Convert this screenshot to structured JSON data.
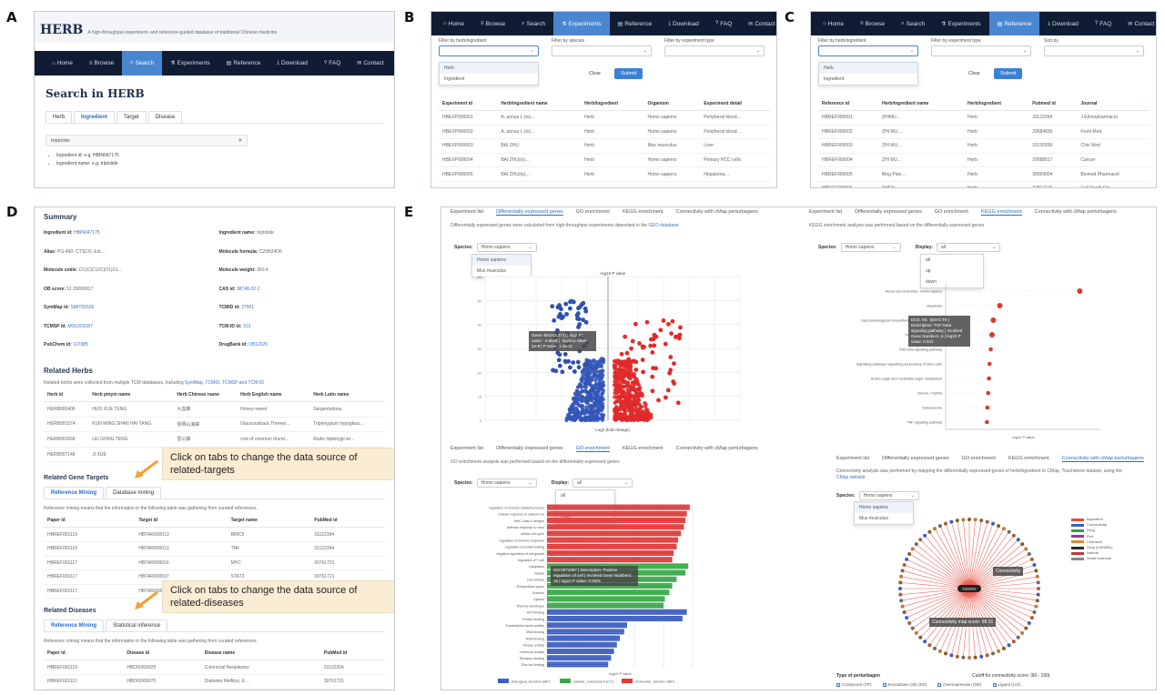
{
  "panel_labels": {
    "a": "A",
    "b": "B",
    "c": "C",
    "d": "D",
    "e": "E"
  },
  "a": {
    "logo": "HERB",
    "tagline": "A high-throughput experiment- and reference-guided database of traditional Chinese medicine",
    "nav": [
      {
        "icon": "⌂",
        "label": "Home"
      },
      {
        "icon": "≡",
        "label": "Browse"
      },
      {
        "icon": "⌕",
        "label": "Search"
      },
      {
        "icon": "⚗",
        "label": "Experiments"
      },
      {
        "icon": "▤",
        "label": "Reference"
      },
      {
        "icon": "⤓",
        "label": "Download"
      },
      {
        "icon": "?",
        "label": "FAQ"
      },
      {
        "icon": "✉",
        "label": "Contact"
      }
    ],
    "heading": "Search in HERB",
    "tabs": [
      "Herb",
      "Ingredient",
      "Target",
      "Disease"
    ],
    "search_value": "triptolide",
    "hints": [
      "Ingredient id: e.g. HBIN047175",
      "Ingredient name: e.g. triptolide"
    ]
  },
  "b": {
    "nav": [
      {
        "icon": "⌂",
        "label": "Home"
      },
      {
        "icon": "≡",
        "label": "Browse"
      },
      {
        "icon": "⌕",
        "label": "Search"
      },
      {
        "icon": "⚗",
        "label": "Experiments"
      },
      {
        "icon": "▤",
        "label": "Reference"
      },
      {
        "icon": "⤓",
        "label": "Download"
      },
      {
        "icon": "?",
        "label": "FAQ"
      },
      {
        "icon": "✉",
        "label": "Contact"
      }
    ],
    "filters": [
      "Filter by herb/ingredient",
      "Filter by species",
      "Filter by experiment type"
    ],
    "dropdown": [
      "Herb",
      "Ingredient"
    ],
    "clear": "Clear",
    "submit": "Submit",
    "headers": [
      "Experiment id",
      "Herb/ingredient name",
      "Herb/ingredient",
      "Organism",
      "Experiment detail"
    ],
    "rows": [
      [
        "HBEXP000001",
        "A. annua L.(ts)…",
        "Herb",
        "Homo sapiens",
        "Peripheral blood…"
      ],
      [
        "HBEXP000002",
        "A. annua L.(ts)…",
        "Herb",
        "Homo sapiens",
        "Peripheral blood…"
      ],
      [
        "HBEXP000003",
        "BAI ZHU",
        "Herb",
        "Mus musculus",
        "Liver"
      ],
      [
        "HBEXP000004",
        "BAI ZHU(ts)…",
        "Herb",
        "Homo sapiens",
        "Primary HCC cells"
      ],
      [
        "HBEXP000005",
        "BAI ZHU(ts)…",
        "Herb",
        "Homo sapiens",
        "Hepatoma…"
      ]
    ]
  },
  "c": {
    "nav": [
      {
        "icon": "⌂",
        "label": "Home"
      },
      {
        "icon": "≡",
        "label": "Browse"
      },
      {
        "icon": "⌕",
        "label": "Search"
      },
      {
        "icon": "⚗",
        "label": "Experiments"
      },
      {
        "icon": "▤",
        "label": "Reference"
      },
      {
        "icon": "⤓",
        "label": "Download"
      },
      {
        "icon": "?",
        "label": "FAQ"
      },
      {
        "icon": "✉",
        "label": "Contact"
      }
    ],
    "filters": [
      "Filter by herb/ingredient",
      "Filter by experiment type",
      "Sort by"
    ],
    "dropdown": [
      "Herb",
      "Ingredient"
    ],
    "clear": "Clear",
    "submit": "Submit",
    "headers": [
      "Reference id",
      "Herb/ingredient name",
      "Herb/ingredient",
      "Pubmed id",
      "Journal"
    ],
    "rows": [
      [
        "HBREF000001",
        "ZHIMU…",
        "Herb",
        "31122394",
        "J Ethnopharmacol"
      ],
      [
        "HBREF000002",
        "ZHI MU…",
        "Herb",
        "29684690",
        "Front Med"
      ],
      [
        "HBREF000003",
        "ZHI MU…",
        "Herb",
        "31150358",
        "Chin Med"
      ],
      [
        "HBREF000004",
        "ZHI MU…",
        "Herb",
        "29088517",
        "Cancer"
      ],
      [
        "HBREF000005",
        "Bing Pian…",
        "Herb",
        "30059004",
        "Biomed Pharmacol"
      ],
      [
        "HBREF000006",
        "SHEN…",
        "Herb",
        "32817776",
        "Cell Death Dis"
      ]
    ]
  },
  "d": {
    "summary_title": "Summary",
    "summary": [
      {
        "k": "Ingredient id:",
        "v": "HBIN047175"
      },
      {
        "k": "Ingredient name:",
        "v": "triptolide"
      },
      {
        "k": "Alias:",
        "v": "PG-490; CTSCO; Ext…"
      },
      {
        "k": "Molecule formula:",
        "v": "C20H24O6"
      },
      {
        "k": "Molecule smile:",
        "v": "CC(C)C12C(O1)C1…"
      },
      {
        "k": "Molecule weight:",
        "v": "360.4"
      },
      {
        "k": "OB score:",
        "v": "51.29000017"
      },
      {
        "k": "CAS id:",
        "v": "38748-32-2"
      },
      {
        "k": "SymMap id:",
        "v": "SMIT05526"
      },
      {
        "k": "TCMID id:",
        "v": "27901"
      },
      {
        "k": "TCMSP id:",
        "v": "MOL003187"
      },
      {
        "k": "TCM-ID id:",
        "v": "313"
      },
      {
        "k": "PubChem id:",
        "v": "107985"
      },
      {
        "k": "DrugBank id:",
        "v": "DB12025"
      }
    ],
    "herbs_title": "Related Herbs",
    "herbs_note_pre": "Related herbs were collected from multiple TCM databases, including",
    "herbs_note_links": [
      "SymMap,",
      "TCMID,",
      "TCMSP and",
      "TCM-ID"
    ],
    "herbs_headers": [
      "Herb id",
      "Herb pinyin name",
      "Herb Chinese name",
      "Herb English name",
      "Herb Latin name"
    ],
    "herbs_rows": [
      [
        "HERB000406",
        "HUO XUE TENG",
        "大血藤",
        "Honey-sweet",
        "Sargentodoxa"
      ],
      [
        "HERB001574",
        "KUN MING SHAN HAI TANG",
        "昆明山海棠",
        "Glaucousback Threew…",
        "Tripterygium hypoglauc…"
      ],
      [
        "HERB002668",
        "LEI GONG TENG",
        "雷公藤",
        "root of common thund…",
        "Radix tripterygii wi…"
      ],
      [
        "HERB007148",
        "JI XUE",
        "鸡血",
        "NA",
        "NA"
      ]
    ],
    "targets_title": "Related Gene Targets",
    "targets_tabs": [
      "Reference Mining",
      "Database mining"
    ],
    "targets_note": "Reference mining means that the information in the following table was gathering from curated references.",
    "targets_headers": [
      "Paper id",
      "Target id",
      "Target name",
      "PubMed id"
    ],
    "targets_rows": [
      [
        "HBREF001119",
        "HBTAR000013",
        "BIRC5",
        "31122394"
      ],
      [
        "HBREF001119",
        "HBTAR000013",
        "TNF",
        "31122394"
      ],
      [
        "HBREF001117",
        "HBTAR000016",
        "MYC",
        "30761721"
      ],
      [
        "HBREF001117",
        "HBTAR000037",
        "STAT3",
        "30761721"
      ],
      [
        "HBREF001117",
        "HBTAR000034",
        "",
        ""
      ]
    ],
    "diseases_title": "Related Diseases",
    "diseases_tabs": [
      "Reference Mining",
      "Statistical inference"
    ],
    "diseases_note": "Reference mining means that the information in the following table was gathering from curated references.",
    "diseases_headers": [
      "Paper id",
      "Disease id",
      "Disease name",
      "PubMed id"
    ],
    "diseases_rows": [
      [
        "HBREF001119",
        "HBDIS000025",
        "Colorectal Neoplasms",
        "31122394"
      ],
      [
        "HBREF001111",
        "HBDIS000075",
        "Diabetes Mellitus, E…",
        "30761721"
      ],
      [
        "HBREF001112",
        "HBDIS000009",
        "Nasopharyngeal carci…",
        "30151164"
      ]
    ],
    "callout1": "Click on tabs to change the data source of related-targets",
    "callout2": "Click on tabs to change the data source of related-diseases"
  },
  "e": {
    "tl_tabs": [
      "Experiment list",
      "Differentially expressed genes",
      "GO enrichment",
      "KEGG enrichment",
      "Connectivity with cMap perturbagens"
    ],
    "tl_note": "Differentially expressed genes were calculated from high-throughput experiments deposited in the",
    "tl_note_link": "GEO database",
    "species_label": "Species:",
    "species_value": "Homo sapiens",
    "species_opts": [
      "Homo sapiens",
      "Mus musculus"
    ],
    "volcano_title": "-log10 P value",
    "volcano_xlabel": "Log2 (fold change)",
    "volcano_tip": "Gene: Birc5(2.371) | log2 FC value: -3.5526 | -log10 p value: 1e-9 | P value: 1.2e-11",
    "tr_tabs": [
      "Experiment list",
      "Differentially expressed genes",
      "GO enrichment",
      "KEGG enrichment",
      "Connectivity with cMap perturbagens"
    ],
    "tr_note": "KEGG enrichment analysis was performed based on the differentially expressed genes",
    "display_label": "Display:",
    "display_value": "all",
    "display_opts": [
      "all",
      "up",
      "down"
    ],
    "kegg_labels": [
      "Renal cell carcinoma - homo sapiens",
      "Apoptosis",
      "Glycosaminoglycan biosynthesis - chondroitin sulfate",
      "Proteoglycans in cancer",
      "TNF beta signaling pathway",
      "Signaling pathways regulating pluripotency of stem cells",
      "Amino sugar and nucleotide sugar metabolism",
      "Glioma / rhythm",
      "Spliceosome",
      "TNF signaling pathway"
    ],
    "kegg_values": [
      5.2,
      2.1,
      1.85,
      1.8,
      1.75,
      1.7,
      1.68,
      1.65,
      1.62,
      1.6
    ],
    "kegg_xlabel": "-log10 P value",
    "kegg_tip": "EGS, KE. 6y8ACT8 | Description: TGF-beta signaling pathway | Involved Gene Numbers: 6 | log10 P value: 0.041",
    "bl_tabs": [
      "Experiment list",
      "Differentially expressed genes",
      "GO enrichment",
      "KEGG enrichment",
      "Connectivity with cMap perturbagens"
    ],
    "bl_note": "GO enrichment analysis was performed based on the differentially expressed genes",
    "go_labels": [
      "regulation of immune network process",
      "Cellular response to calcium ion",
      "MHC class II antigen",
      "defense response to virus",
      "mitotic cell cycle",
      "regulation of immune response",
      "regulation of protein folding",
      "negative regulation of cell growth",
      "regulation of T cell",
      "Cytoplasm",
      "vesicle",
      "Cell surface",
      "Extracellular space",
      "Nucleus",
      "Cytosol",
      "Plasma membrane",
      "ATP binding",
      "Protein binding",
      "Transcription factor activity",
      "DNA binding",
      "RNA binding",
      "Kinase activity",
      "Hormone activity",
      "Receptor binding",
      "Zinc ion binding"
    ],
    "go_values": [
      9.8,
      9.6,
      9.5,
      9.4,
      9.2,
      9.0,
      8.9,
      8.7,
      8.6,
      9.7,
      9.5,
      8.9,
      8.6,
      8.4,
      8.1,
      8.0,
      9.6,
      9.3,
      5.5,
      5.3,
      5.0,
      4.8,
      4.6,
      4.4,
      4.2
    ],
    "go_series": [
      "biological_function (BP)",
      "cellular_component (CC)",
      "molecular_function (MF)"
    ],
    "go_colors": [
      "#e03a3a",
      "#3aa84a",
      "#3d5fbf"
    ],
    "go_xlabel": "-log10 P value",
    "go_tip": "GO:0071897 | Description: Positive regulation of cell | Involved Gene Numbers: 15 | log10 P value: 0.0001",
    "br_tabs": [
      "Experiment list",
      "Differentially expressed genes",
      "GO enrichment",
      "KEGG enrichment",
      "Connectivity with cMap perturbagens"
    ],
    "br_note": "Connectivity analysis was performed by mapping the differentially expressed genes of herb/ingredient to CMap, Touchstone dataset, using the",
    "br_note_link": "CMap website",
    "net_center": "triptolide",
    "net_tip1": "Connectivity",
    "net_tip2": "Connectivity map score: 98.51",
    "net_legend": [
      "Ingredient",
      "Connectivity",
      "Drug",
      "Pert",
      "Chemical",
      "Drug (ChEMBL)",
      "Natural",
      "Small molecule"
    ],
    "net_legend_colors": [
      "#e84a3c",
      "#3d5fbf",
      "#3a9a4a",
      "#9a3a9a",
      "#e08a2a",
      "#2a2a2a",
      "#c13a3a",
      "#888888"
    ],
    "perturbagen_label": "Type of perturbagen",
    "perturbagen_types": [
      "Compound (CP)",
      "Knockdown (sh) (KD)",
      "Overexpression (OE)",
      "Ligand (LIG)"
    ],
    "score_cutoff": "Cutoff for connectivity score: |90 - 100|"
  }
}
